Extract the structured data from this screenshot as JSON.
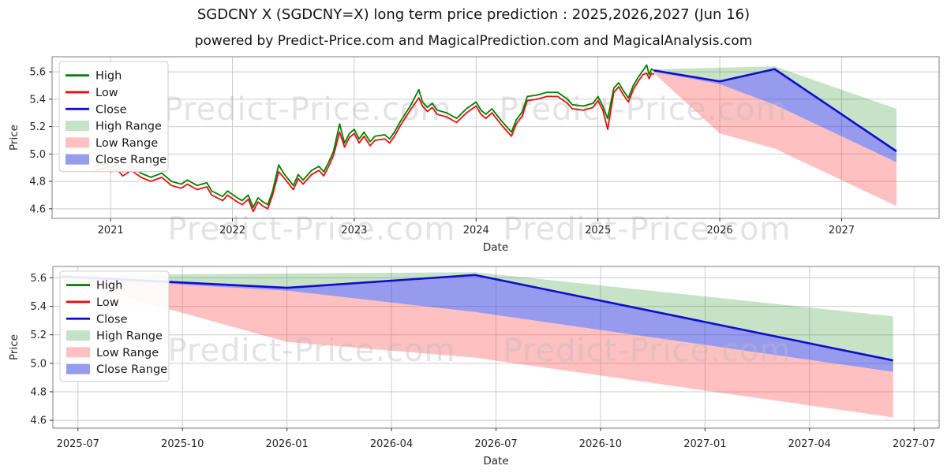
{
  "header": {
    "title": "SGDCNY X (SGDCNY=X) long term price prediction : 2025,2026,2027 (Jun 16)",
    "subtitle": "powered by Predict-Price.com and MagicalPrediction.com and MagicalAnalysis.com"
  },
  "watermark": {
    "text": "Predict-Price.com"
  },
  "colors": {
    "high": "#008000",
    "low": "#e40f0f",
    "close": "#0d0dcf",
    "high_range": "rgba(0,128,0,0.22)",
    "low_range": "rgba(252,70,70,0.34)",
    "close_range": "rgba(45,55,220,0.50)",
    "grid": "#cccccc",
    "spine": "#7f7f7f",
    "tick_text": "#262626",
    "watermark_gray": "#bdbdbd"
  },
  "forecast": {
    "x": [
      2025.46,
      2026.0,
      2026.45,
      2027.45
    ],
    "close": [
      5.61,
      5.53,
      5.62,
      5.02
    ],
    "high_top": [
      5.62,
      5.63,
      5.64,
      5.33
    ],
    "close_bot": [
      5.6,
      5.51,
      5.36,
      4.94
    ],
    "low_bot": [
      5.59,
      5.15,
      5.04,
      4.62
    ]
  },
  "chart_data": [
    {
      "type": "line",
      "name": "long-term-history-and-forecast",
      "xlabel": "Date",
      "ylabel": "Price",
      "xlim": [
        2020.52,
        2027.8
      ],
      "ylim": [
        4.53,
        5.71
      ],
      "xticks": [
        {
          "v": 2021,
          "label": "2021"
        },
        {
          "v": 2022,
          "label": "2022"
        },
        {
          "v": 2023,
          "label": "2023"
        },
        {
          "v": 2024,
          "label": "2024"
        },
        {
          "v": 2025,
          "label": "2025"
        },
        {
          "v": 2026,
          "label": "2026"
        },
        {
          "v": 2027,
          "label": "2027"
        }
      ],
      "yticks": [
        {
          "v": 4.6,
          "label": "4.6"
        },
        {
          "v": 4.8,
          "label": "4.8"
        },
        {
          "v": 5.0,
          "label": "5.0"
        },
        {
          "v": 5.2,
          "label": "5.2"
        },
        {
          "v": 5.4,
          "label": "5.4"
        },
        {
          "v": 5.6,
          "label": "5.6"
        }
      ],
      "legend": [
        {
          "label": "High",
          "swatch": "line",
          "color_key": "high"
        },
        {
          "label": "Low",
          "swatch": "line",
          "color_key": "low"
        },
        {
          "label": "Close",
          "swatch": "line",
          "color_key": "close"
        },
        {
          "label": "High Range",
          "swatch": "patch",
          "color_key": "high_range"
        },
        {
          "label": "Low Range",
          "swatch": "patch",
          "color_key": "low_range"
        },
        {
          "label": "Close Range",
          "swatch": "patch",
          "color_key": "close_range"
        }
      ],
      "history": {
        "x": [
          2020.87,
          2020.96,
          2021.0,
          2021.05,
          2021.1,
          2021.17,
          2021.25,
          2021.33,
          2021.42,
          2021.5,
          2021.58,
          2021.63,
          2021.71,
          2021.79,
          2021.83,
          2021.92,
          2021.96,
          2022.04,
          2022.08,
          2022.13,
          2022.17,
          2022.21,
          2022.25,
          2022.29,
          2022.33,
          2022.38,
          2022.42,
          2022.5,
          2022.54,
          2022.58,
          2022.65,
          2022.71,
          2022.75,
          2022.79,
          2022.83,
          2022.88,
          2022.92,
          2022.96,
          2023.0,
          2023.04,
          2023.08,
          2023.13,
          2023.17,
          2023.25,
          2023.29,
          2023.33,
          2023.38,
          2023.46,
          2023.53,
          2023.56,
          2023.6,
          2023.64,
          2023.68,
          2023.76,
          2023.84,
          2023.92,
          2024.0,
          2024.04,
          2024.08,
          2024.13,
          2024.21,
          2024.29,
          2024.33,
          2024.38,
          2024.42,
          2024.5,
          2024.58,
          2024.67,
          2024.75,
          2024.79,
          2024.88,
          2024.96,
          2025.0,
          2025.04,
          2025.08,
          2025.13,
          2025.17,
          2025.21,
          2025.25,
          2025.29,
          2025.33,
          2025.37,
          2025.4,
          2025.42,
          2025.44,
          2025.46
        ],
        "high": [
          4.91,
          4.93,
          4.9,
          4.92,
          4.87,
          4.91,
          4.86,
          4.83,
          4.86,
          4.8,
          4.78,
          4.81,
          4.77,
          4.79,
          4.73,
          4.69,
          4.73,
          4.68,
          4.66,
          4.7,
          4.61,
          4.68,
          4.65,
          4.63,
          4.73,
          4.92,
          4.86,
          4.77,
          4.85,
          4.81,
          4.88,
          4.91,
          4.87,
          4.94,
          5.02,
          5.22,
          5.08,
          5.15,
          5.18,
          5.11,
          5.16,
          5.09,
          5.13,
          5.14,
          5.11,
          5.16,
          5.24,
          5.35,
          5.47,
          5.38,
          5.34,
          5.37,
          5.32,
          5.3,
          5.26,
          5.33,
          5.38,
          5.32,
          5.29,
          5.33,
          5.24,
          5.16,
          5.25,
          5.31,
          5.42,
          5.43,
          5.45,
          5.45,
          5.4,
          5.36,
          5.35,
          5.37,
          5.42,
          5.35,
          5.26,
          5.48,
          5.52,
          5.46,
          5.41,
          5.5,
          5.56,
          5.61,
          5.65,
          5.58,
          5.62,
          5.61
        ],
        "low": [
          4.88,
          4.9,
          4.87,
          4.89,
          4.84,
          4.88,
          4.83,
          4.8,
          4.83,
          4.77,
          4.75,
          4.78,
          4.74,
          4.76,
          4.7,
          4.66,
          4.7,
          4.65,
          4.63,
          4.67,
          4.58,
          4.65,
          4.62,
          4.6,
          4.7,
          4.87,
          4.83,
          4.74,
          4.82,
          4.78,
          4.85,
          4.88,
          4.84,
          4.91,
          4.99,
          5.16,
          5.05,
          5.12,
          5.15,
          5.08,
          5.13,
          5.06,
          5.1,
          5.11,
          5.08,
          5.13,
          5.21,
          5.32,
          5.41,
          5.35,
          5.31,
          5.34,
          5.29,
          5.27,
          5.23,
          5.3,
          5.35,
          5.29,
          5.26,
          5.3,
          5.21,
          5.13,
          5.22,
          5.28,
          5.39,
          5.4,
          5.42,
          5.42,
          5.37,
          5.33,
          5.32,
          5.34,
          5.39,
          5.32,
          5.18,
          5.45,
          5.49,
          5.43,
          5.38,
          5.47,
          5.53,
          5.58,
          5.59,
          5.55,
          5.59,
          5.58
        ]
      },
      "forecast_key": "forecast"
    },
    {
      "type": "line",
      "name": "forecast-detail",
      "xlabel": "Date",
      "ylabel": "Price",
      "xlim": [
        2025.44,
        2027.56
      ],
      "ylim": [
        4.545,
        5.68
      ],
      "xticks": [
        {
          "v": 2025.5,
          "label": "2025-07"
        },
        {
          "v": 2025.75,
          "label": "2025-10"
        },
        {
          "v": 2026.0,
          "label": "2026-01"
        },
        {
          "v": 2026.25,
          "label": "2026-04"
        },
        {
          "v": 2026.5,
          "label": "2026-07"
        },
        {
          "v": 2026.75,
          "label": "2026-10"
        },
        {
          "v": 2027.0,
          "label": "2027-01"
        },
        {
          "v": 2027.25,
          "label": "2027-04"
        },
        {
          "v": 2027.5,
          "label": "2027-07"
        }
      ],
      "yticks": [
        {
          "v": 4.6,
          "label": "4.6"
        },
        {
          "v": 4.8,
          "label": "4.8"
        },
        {
          "v": 5.0,
          "label": "5.0"
        },
        {
          "v": 5.2,
          "label": "5.2"
        },
        {
          "v": 5.4,
          "label": "5.4"
        },
        {
          "v": 5.6,
          "label": "5.6"
        }
      ],
      "legend": [
        {
          "label": "High",
          "swatch": "line",
          "color_key": "high"
        },
        {
          "label": "Low",
          "swatch": "line",
          "color_key": "low"
        },
        {
          "label": "Close",
          "swatch": "line",
          "color_key": "close"
        },
        {
          "label": "High Range",
          "swatch": "patch",
          "color_key": "high_range"
        },
        {
          "label": "Low Range",
          "swatch": "patch",
          "color_key": "low_range"
        },
        {
          "label": "Close Range",
          "swatch": "patch",
          "color_key": "close_range"
        }
      ],
      "history": null,
      "forecast_key": "forecast"
    }
  ]
}
